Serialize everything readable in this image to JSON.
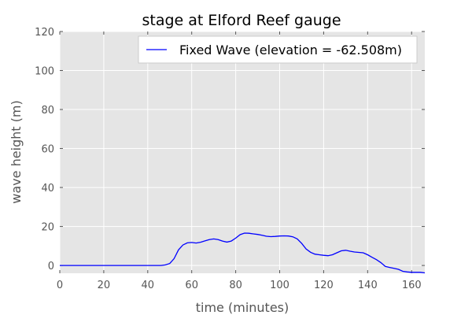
{
  "chart_data": {
    "type": "line",
    "title": "stage at Elford Reef gauge",
    "xlabel": "time (minutes)",
    "ylabel": "wave height (m)",
    "xlim": [
      0,
      166
    ],
    "ylim": [
      -4,
      120
    ],
    "xticks": [
      0,
      20,
      40,
      60,
      80,
      100,
      120,
      140,
      160
    ],
    "yticks": [
      0,
      20,
      40,
      60,
      80,
      100,
      120
    ],
    "grid": true,
    "legend_position": "top-right",
    "series": [
      {
        "name": "Fixed Wave (elevation = -62.508m)",
        "color": "#0000ff",
        "x": [
          0,
          10,
          20,
          30,
          40,
          46,
          48,
          50,
          52,
          54,
          56,
          58,
          60,
          62,
          64,
          66,
          68,
          70,
          72,
          74,
          76,
          78,
          80,
          82,
          84,
          86,
          88,
          90,
          92,
          94,
          96,
          98,
          100,
          102,
          104,
          106,
          108,
          110,
          112,
          114,
          116,
          118,
          120,
          122,
          124,
          126,
          128,
          130,
          132,
          134,
          136,
          138,
          140,
          142,
          144,
          146,
          148,
          150,
          152,
          154,
          156,
          158,
          160,
          162,
          164,
          166
        ],
        "y": [
          0,
          0,
          0,
          0,
          0,
          0,
          0.3,
          1.0,
          3.5,
          8.0,
          10.5,
          11.6,
          11.8,
          11.5,
          11.9,
          12.6,
          13.3,
          13.6,
          13.3,
          12.5,
          12.0,
          12.5,
          14.0,
          15.8,
          16.6,
          16.5,
          16.2,
          15.9,
          15.5,
          15.0,
          14.8,
          14.9,
          15.1,
          15.2,
          15.1,
          14.7,
          13.6,
          11.3,
          8.5,
          6.8,
          5.8,
          5.5,
          5.2,
          5.0,
          5.5,
          6.5,
          7.5,
          7.8,
          7.3,
          6.9,
          6.7,
          6.5,
          5.5,
          4.2,
          3.0,
          1.5,
          -0.5,
          -1.0,
          -1.5,
          -2.0,
          -3.0,
          -3.3,
          -3.5,
          -3.5,
          -3.5,
          -3.8
        ]
      }
    ]
  }
}
